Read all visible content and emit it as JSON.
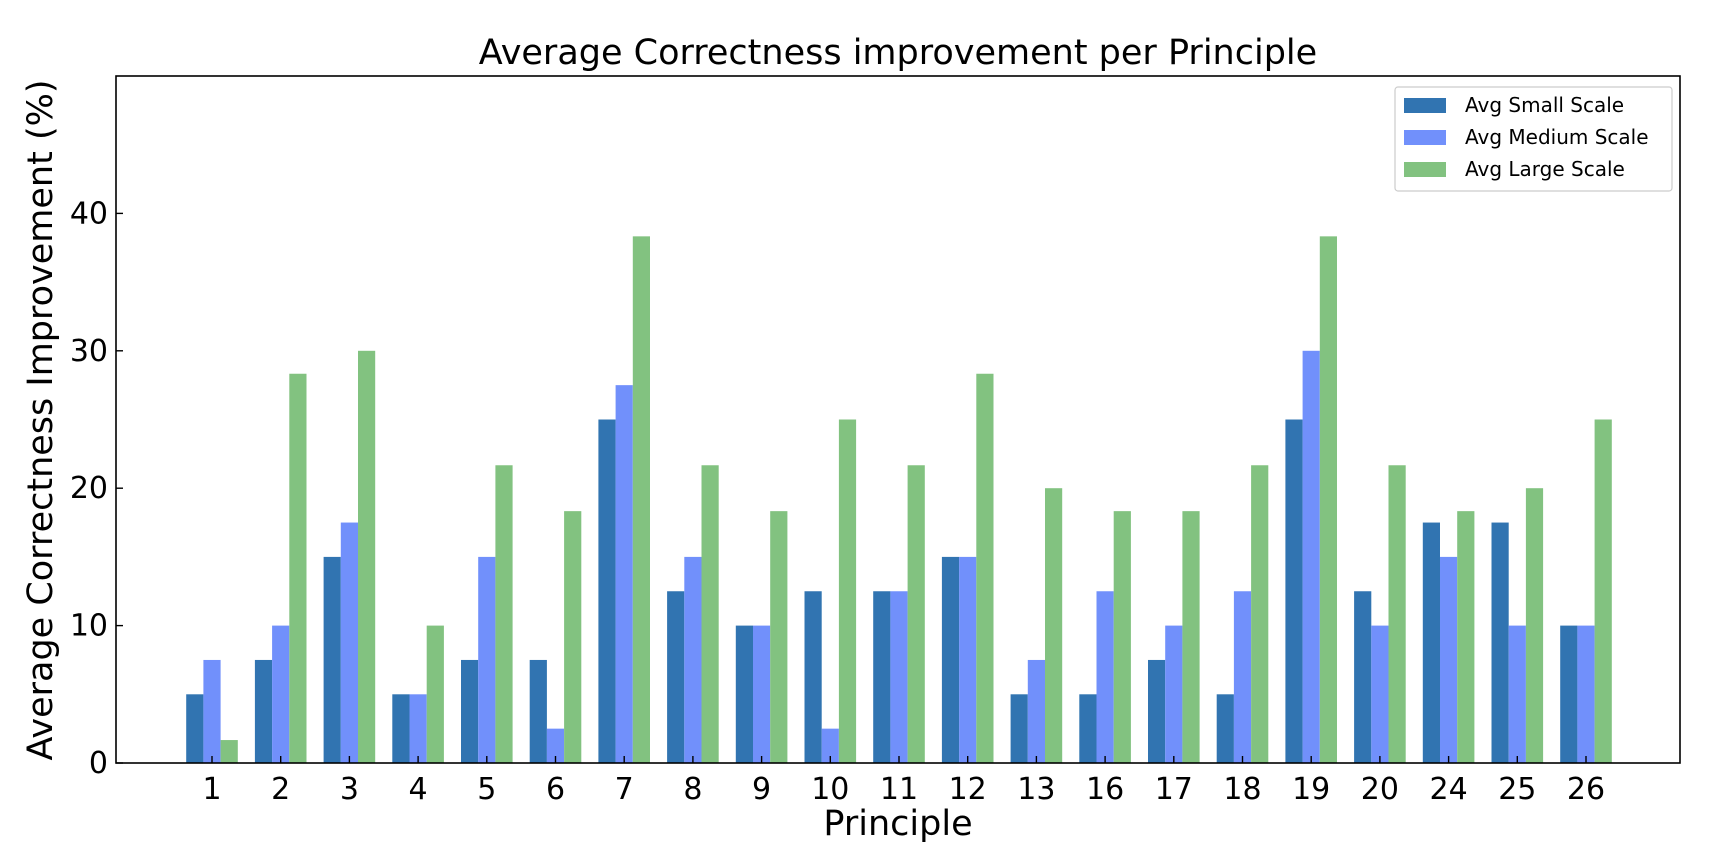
{
  "chart_data": {
    "type": "bar",
    "title": "Average Correctness improvement per Principle",
    "xlabel": "Principle",
    "ylabel": "Average Correctness Improvement (%)",
    "categories": [
      "1",
      "2",
      "3",
      "4",
      "5",
      "6",
      "7",
      "8",
      "9",
      "10",
      "11",
      "12",
      "13",
      "16",
      "17",
      "18",
      "19",
      "20",
      "24",
      "25",
      "26"
    ],
    "series": [
      {
        "name": "Avg Small Scale",
        "color": "#3174b1",
        "values": [
          5,
          7.5,
          15,
          5,
          7.5,
          7.5,
          25,
          12.5,
          10,
          12.5,
          12.5,
          15,
          5,
          5,
          7.5,
          5,
          25,
          12.5,
          17.5,
          17.5,
          10
        ]
      },
      {
        "name": "Avg Medium Scale",
        "color": "#7190fb",
        "values": [
          7.5,
          10,
          17.5,
          5,
          15,
          2.5,
          27.5,
          15,
          10,
          2.5,
          12.5,
          15,
          7.5,
          12.5,
          10,
          12.5,
          30,
          10,
          15,
          10,
          10
        ]
      },
      {
        "name": "Avg Large Scale",
        "color": "#82c280",
        "values": [
          1.67,
          28.33,
          30,
          10,
          21.67,
          18.33,
          38.33,
          21.67,
          18.33,
          25,
          21.67,
          28.33,
          20,
          18.33,
          18.33,
          21.67,
          38.33,
          21.67,
          18.33,
          20,
          25
        ]
      }
    ],
    "yticks": [
      0,
      10,
      20,
      30,
      40
    ],
    "ylim": [
      0,
      50
    ],
    "grid": false,
    "legend_position": "top-right"
  }
}
